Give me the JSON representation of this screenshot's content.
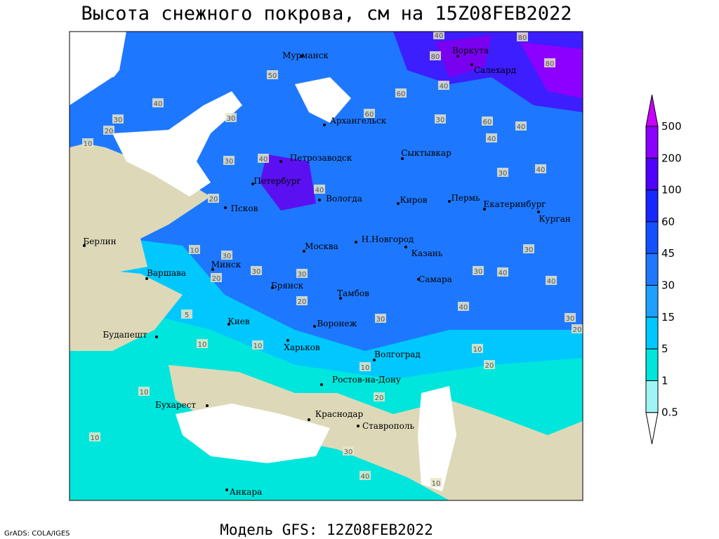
{
  "title": "Высота снежного покрова, см на 15Z08FEB2022",
  "footer": "Модель GFS: 12Z08FEB2022",
  "credit": "GrADS: COLA/IGES",
  "legend": {
    "levels": [
      0.5,
      1,
      5,
      15,
      30,
      45,
      60,
      100,
      200,
      500
    ],
    "colors": [
      "#ffffff",
      "#9ff5f5",
      "#00e6dc",
      "#00c8ff",
      "#1ea0ff",
      "#1e78ff",
      "#1450ff",
      "#1428ff",
      "#5000ff",
      "#8c00ff",
      "#c800ff"
    ]
  },
  "cities": [
    "Мурманск",
    "Воркута",
    "Салехард",
    "Архангельск",
    "Сыктывкар",
    "Петрозаводск",
    "Петербург",
    "Вологда",
    "Киров",
    "Пермь",
    "Екатеринбург",
    "Курган",
    "Псков",
    "Н.Новгород",
    "Берлин",
    "Москва",
    "Казань",
    "Минск",
    "Варшава",
    "Самара",
    "Брянск",
    "Тамбов",
    "Киев",
    "Воронеж",
    "Будапешт",
    "Харьков",
    "Волгоград",
    "Ростов-на-Дону",
    "Бухарест",
    "Краснодар",
    "Ставрополь",
    "Анкара"
  ],
  "contour_labels": [
    40,
    80,
    80,
    80,
    50,
    60,
    40,
    40,
    30,
    20,
    10,
    30,
    60,
    30,
    60,
    40,
    40,
    30,
    40,
    20,
    40,
    30,
    40,
    10,
    30,
    20,
    30,
    30,
    20,
    30,
    5,
    10,
    10,
    40,
    30,
    40,
    40,
    30,
    30,
    20,
    10,
    20,
    10,
    20,
    10,
    10,
    30,
    40,
    10
  ]
}
